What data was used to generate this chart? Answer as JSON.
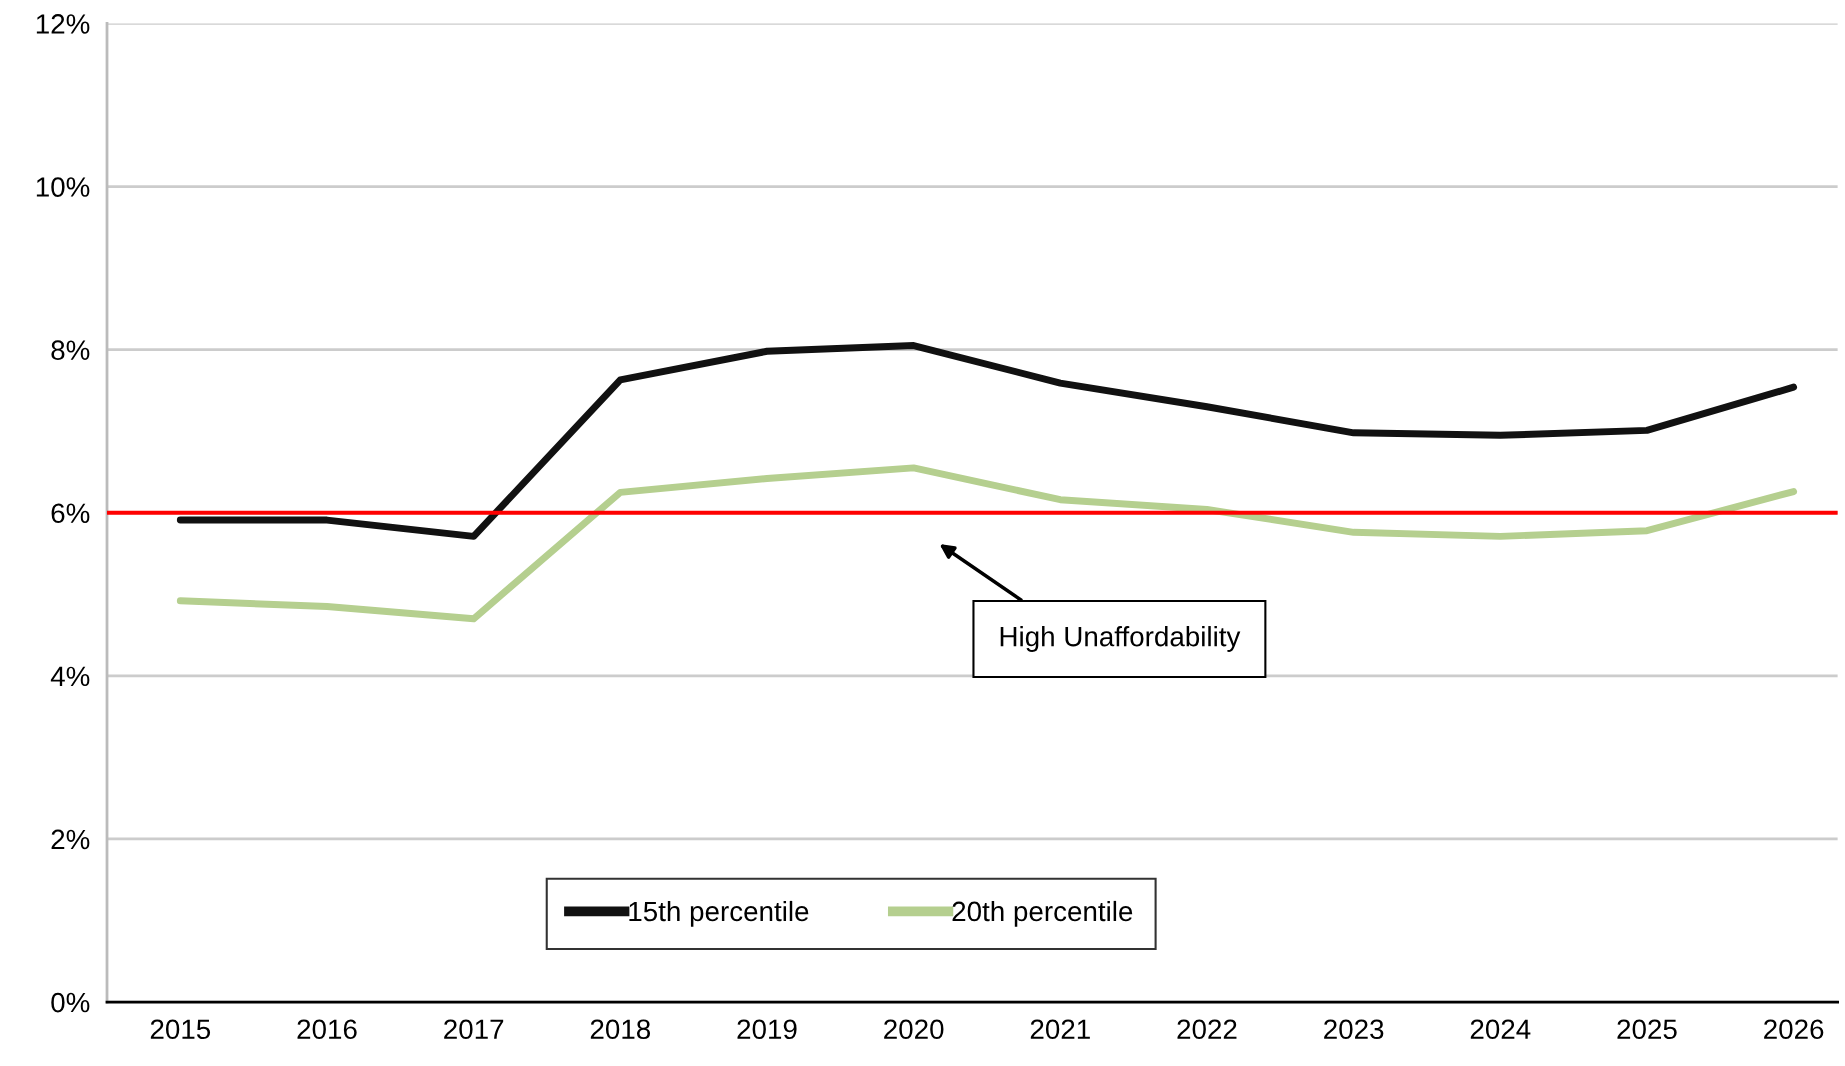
{
  "chart_data": {
    "type": "line",
    "x": [
      2015,
      2016,
      2017,
      2018,
      2019,
      2020,
      2021,
      2022,
      2023,
      2024,
      2025,
      2026
    ],
    "series": [
      {
        "name": "15th percentile",
        "color": "#111111",
        "values": [
          5.91,
          5.91,
          5.71,
          7.63,
          7.98,
          8.05,
          7.59,
          7.3,
          6.98,
          6.95,
          7.01,
          7.54
        ]
      },
      {
        "name": "20th percentile",
        "color": "#b5cf8f",
        "values": [
          4.92,
          4.85,
          4.7,
          6.25,
          6.42,
          6.55,
          6.16,
          6.04,
          5.76,
          5.71,
          5.78,
          6.26
        ]
      }
    ],
    "xlim": [
      2014.5,
      2026.3
    ],
    "xticks": [
      2015,
      2016,
      2017,
      2018,
      2019,
      2020,
      2021,
      2022,
      2023,
      2024,
      2025,
      2026
    ],
    "ylim": [
      0,
      12
    ],
    "yticks": [
      {
        "value": 0,
        "label": "0%"
      },
      {
        "value": 2,
        "label": "2%"
      },
      {
        "value": 4,
        "label": "4%"
      },
      {
        "value": 6,
        "label": "6%"
      },
      {
        "value": 8,
        "label": "8%"
      },
      {
        "value": 10,
        "label": "10%"
      },
      {
        "value": 12,
        "label": "12%"
      }
    ],
    "ref_lines": [
      {
        "axis": "y",
        "value": 6,
        "color": "#ff0000"
      }
    ],
    "annotations": [
      "High Unaffordability"
    ],
    "grid": "y",
    "legend": "bottom",
    "marker": "none",
    "line_style": "solid"
  }
}
